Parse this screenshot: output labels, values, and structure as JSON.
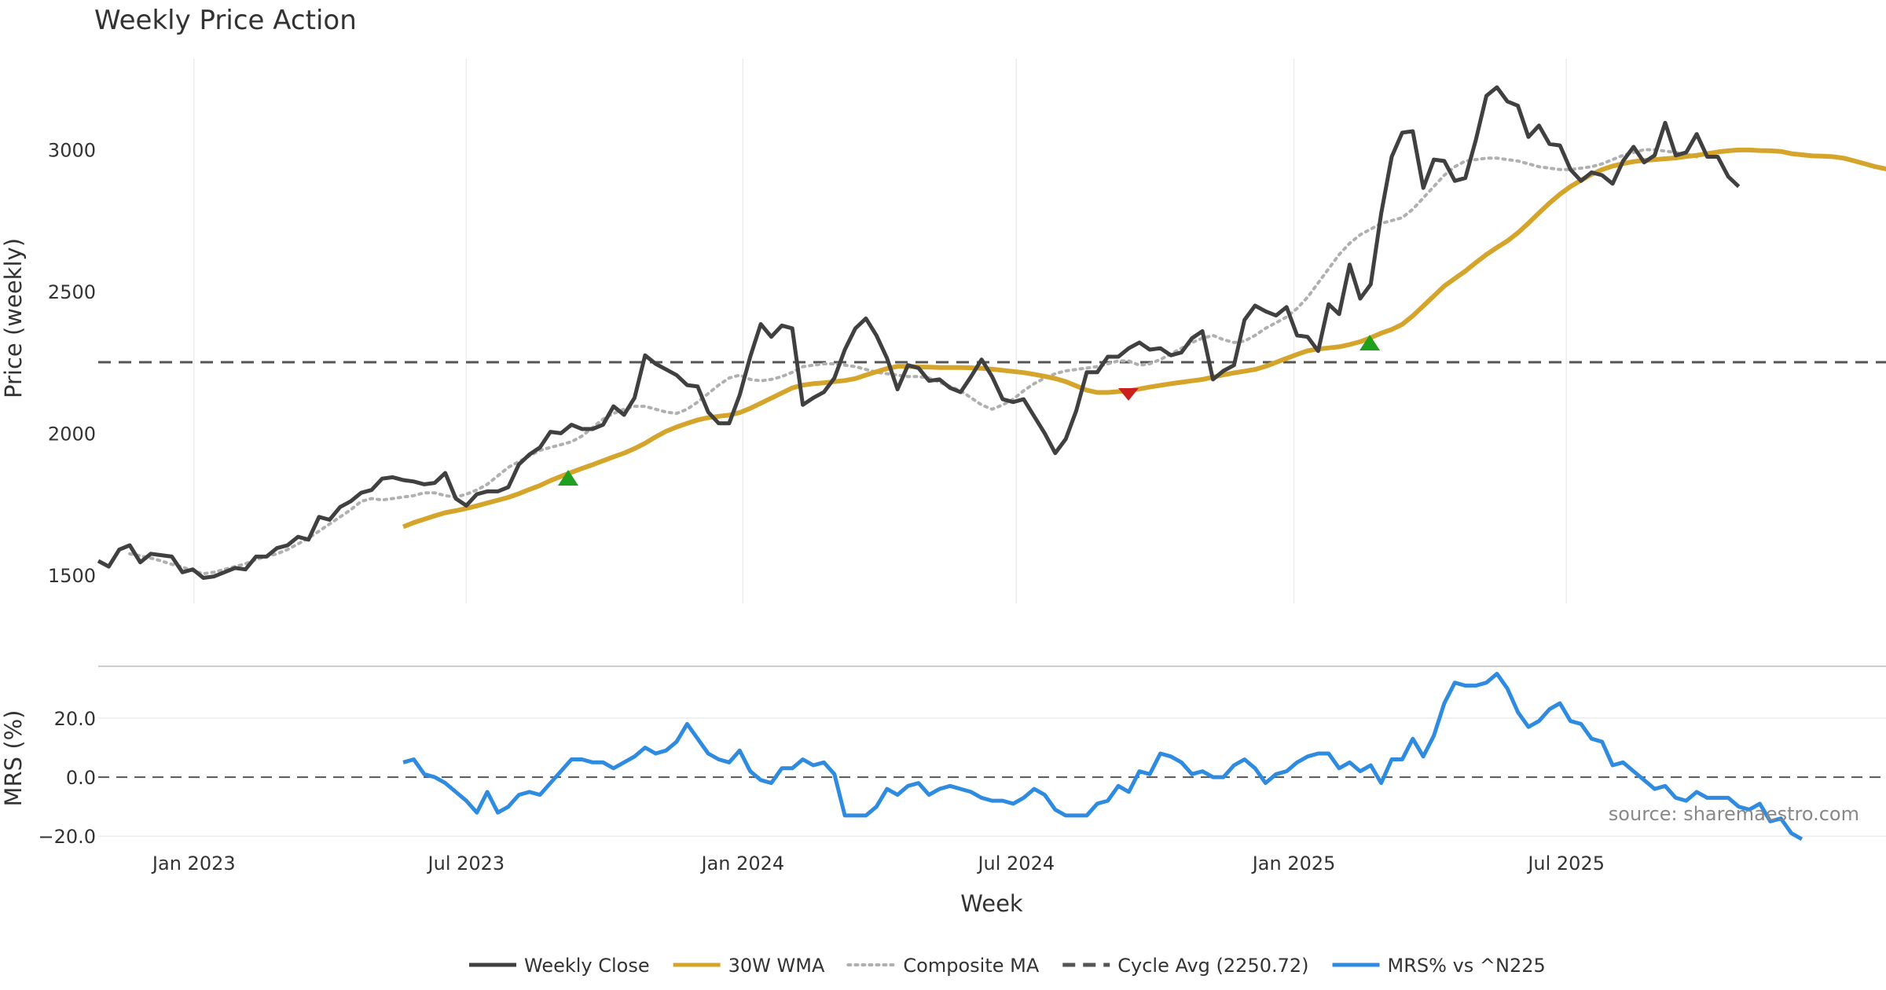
{
  "title": "Weekly Price Action",
  "source": "source: sharemaestro.com",
  "legend": [
    {
      "label": "Weekly Close",
      "color": "#404040",
      "style": "solid"
    },
    {
      "label": "30W WMA",
      "color": "#d4a52a",
      "style": "solid"
    },
    {
      "label": "Composite MA",
      "color": "#b0b0b0",
      "style": "dotted"
    },
    {
      "label": "Cycle Avg (2250.72)",
      "color": "#555555",
      "style": "dashed"
    },
    {
      "label": "MRS% vs ^N225",
      "color": "#2e8be0",
      "style": "solid"
    }
  ],
  "chart_data": [
    {
      "type": "line",
      "title": "Weekly Price Action",
      "xlabel": "Week",
      "ylabel": "Price (weekly)",
      "x_start_week": "2022-11-28",
      "xlim_weeks": [
        0,
        170
      ],
      "ylim": [
        1400,
        3320
      ],
      "yticks": [
        1500,
        2000,
        2500,
        3000
      ],
      "xticks": [
        {
          "label": "Jan 2023",
          "week": 9.1
        },
        {
          "label": "Jul 2023",
          "week": 35.0
        },
        {
          "label": "Jan 2024",
          "week": 61.3
        },
        {
          "label": "Jul 2024",
          "week": 87.3
        },
        {
          "label": "Jan 2025",
          "week": 113.7
        },
        {
          "label": "Jul 2025",
          "week": 139.6
        }
      ],
      "hline": {
        "name": "Cycle Avg (2250.72)",
        "value": 2250.72
      },
      "series": [
        {
          "name": "Weekly Close",
          "values": [
            1550,
            1530,
            1590,
            1605,
            1545,
            1575,
            1570,
            1565,
            1510,
            1520,
            1490,
            1495,
            1510,
            1525,
            1520,
            1565,
            1565,
            1595,
            1605,
            1635,
            1625,
            1705,
            1695,
            1740,
            1760,
            1790,
            1800,
            1840,
            1845,
            1835,
            1830,
            1820,
            1825,
            1860,
            1770,
            1745,
            1785,
            1795,
            1795,
            1810,
            1890,
            1925,
            1950,
            2005,
            2000,
            2030,
            2015,
            2015,
            2030,
            2095,
            2065,
            2125,
            2275,
            2245,
            2225,
            2205,
            2170,
            2165,
            2075,
            2035,
            2035,
            2135,
            2270,
            2385,
            2340,
            2380,
            2370,
            2100,
            2125,
            2145,
            2195,
            2295,
            2370,
            2405,
            2345,
            2265,
            2155,
            2240,
            2230,
            2185,
            2190,
            2160,
            2145,
            2200,
            2260,
            2200,
            2120,
            2110,
            2120,
            2060,
            2000,
            1930,
            1980,
            2080,
            2215,
            2215,
            2270,
            2270,
            2300,
            2320,
            2295,
            2300,
            2275,
            2285,
            2335,
            2360,
            2190,
            2220,
            2240,
            2400,
            2450,
            2430,
            2415,
            2445,
            2345,
            2340,
            2290,
            2455,
            2420,
            2595,
            2475,
            2525,
            2775,
            2975,
            3060,
            3065,
            2865,
            2965,
            2960,
            2890,
            2900,
            3035,
            3190,
            3220,
            3170,
            3155,
            3045,
            3085,
            3020,
            3015,
            2930,
            2890,
            2920,
            2910,
            2880,
            2960,
            3010,
            2955,
            2980,
            3095,
            2980,
            2990,
            3055,
            2975,
            2975,
            2905,
            2870
          ]
        },
        {
          "name": "30W WMA",
          "start_week": 29,
          "values": [
            1670,
            1685,
            1697,
            1709,
            1720,
            1727,
            1735,
            1744,
            1754,
            1764,
            1774,
            1787,
            1802,
            1816,
            1833,
            1848,
            1862,
            1876,
            1889,
            1903,
            1917,
            1930,
            1946,
            1965,
            1987,
            2007,
            2022,
            2035,
            2047,
            2055,
            2060,
            2064,
            2073,
            2088,
            2106,
            2124,
            2142,
            2160,
            2170,
            2175,
            2178,
            2182,
            2186,
            2193,
            2205,
            2217,
            2228,
            2236,
            2236,
            2234,
            2233,
            2232,
            2232,
            2232,
            2231,
            2229,
            2226,
            2222,
            2218,
            2214,
            2208,
            2201,
            2193,
            2182,
            2167,
            2152,
            2144,
            2144,
            2147,
            2150,
            2156,
            2163,
            2169,
            2175,
            2180,
            2185,
            2190,
            2198,
            2206,
            2213,
            2219,
            2225,
            2236,
            2250,
            2264,
            2278,
            2291,
            2297,
            2301,
            2305,
            2313,
            2323,
            2337,
            2353,
            2366,
            2384,
            2414,
            2449,
            2484,
            2519,
            2546,
            2572,
            2602,
            2630,
            2655,
            2678,
            2707,
            2741,
            2777,
            2812,
            2843,
            2870,
            2892,
            2913,
            2930,
            2942,
            2951,
            2958,
            2962,
            2965,
            2968,
            2971,
            2976,
            2980,
            2986,
            2992,
            2996,
            2999,
            2999,
            2997,
            2996,
            2994,
            2986,
            2982,
            2978,
            2977,
            2975,
            2970,
            2960,
            2950,
            2940,
            2932,
            2925,
            2918
          ]
        },
        {
          "name": "Composite MA",
          "start_week": 3,
          "values": [
            1575,
            1568,
            1560,
            1550,
            1538,
            1528,
            1515,
            1505,
            1510,
            1520,
            1530,
            1540,
            1555,
            1565,
            1575,
            1590,
            1610,
            1630,
            1655,
            1680,
            1705,
            1730,
            1760,
            1770,
            1765,
            1770,
            1775,
            1780,
            1790,
            1790,
            1780,
            1775,
            1785,
            1800,
            1820,
            1850,
            1880,
            1900,
            1920,
            1940,
            1950,
            1960,
            1970,
            1990,
            2020,
            2050,
            2070,
            2085,
            2095,
            2095,
            2085,
            2075,
            2070,
            2085,
            2110,
            2140,
            2170,
            2195,
            2205,
            2190,
            2185,
            2190,
            2200,
            2215,
            2235,
            2240,
            2245,
            2245,
            2240,
            2235,
            2225,
            2215,
            2210,
            2205,
            2200,
            2200,
            2195,
            2180,
            2165,
            2150,
            2125,
            2100,
            2085,
            2100,
            2120,
            2150,
            2175,
            2195,
            2210,
            2220,
            2225,
            2230,
            2235,
            2245,
            2255,
            2255,
            2240,
            2245,
            2260,
            2280,
            2300,
            2320,
            2335,
            2345,
            2330,
            2320,
            2325,
            2345,
            2370,
            2390,
            2410,
            2440,
            2480,
            2530,
            2580,
            2630,
            2670,
            2700,
            2720,
            2740,
            2750,
            2760,
            2790,
            2830,
            2870,
            2910,
            2940,
            2960,
            2965,
            2970,
            2970,
            2965,
            2960,
            2950,
            2940,
            2935,
            2930,
            2930,
            2935,
            2940,
            2950,
            2965,
            2980,
            2990,
            3000,
            3000,
            2995,
            2990,
            2985,
            2975
          ]
        },
        {
          "name": "MRS% vs ^N225",
          "start_week": 29,
          "values": [
            5,
            6,
            1,
            0,
            -2,
            -5,
            -8,
            -12,
            -5,
            -12,
            -10,
            -6,
            -5,
            -6,
            -2,
            2,
            6,
            6,
            5,
            5,
            3,
            5,
            7,
            10,
            8,
            9,
            12,
            18,
            13,
            8,
            6,
            5,
            9,
            2,
            -1,
            -2,
            3,
            3,
            6,
            4,
            5,
            1,
            -13,
            -13,
            -13,
            -10,
            -4,
            -6,
            -3,
            -2,
            -6,
            -4,
            -3,
            -4,
            -5,
            -7,
            -8,
            -8,
            -9,
            -7,
            -4,
            -6,
            -11,
            -13,
            -13,
            -13,
            -9,
            -8,
            -3,
            -5,
            2,
            1,
            8,
            7,
            5,
            1,
            2,
            0,
            0,
            4,
            6,
            3,
            -2,
            1,
            2,
            5,
            7,
            8,
            8,
            3,
            5,
            2,
            4,
            -2,
            6,
            6,
            13,
            7,
            14,
            25,
            32,
            31,
            31,
            32,
            35,
            30,
            22,
            17,
            19,
            23,
            25,
            19,
            18,
            13,
            12,
            4,
            5,
            2,
            -1,
            -4,
            -3,
            -7,
            -8,
            -5,
            -7,
            -7,
            -7,
            -10,
            -11,
            -9,
            -15,
            -14,
            -19,
            -21
          ]
        }
      ]
    },
    {
      "type": "line",
      "ylabel": "MRS (%)",
      "ylim": [
        -21,
        37
      ],
      "yticks": [
        -20.0,
        0.0,
        20.0
      ],
      "hline": {
        "value": 0
      }
    }
  ]
}
